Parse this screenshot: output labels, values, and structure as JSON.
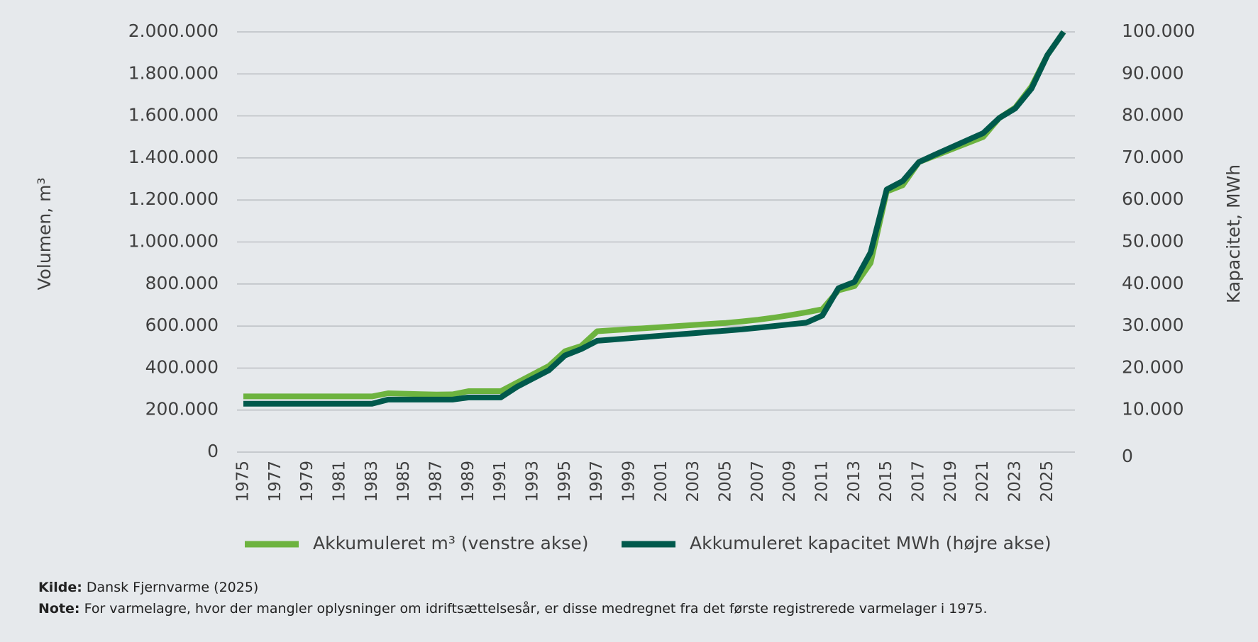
{
  "chart_data": {
    "type": "line",
    "y_label": "Volumen, m³",
    "y2_label": "Kapacitet, MWh",
    "categories": [
      "1975",
      null,
      "1977",
      null,
      "1979",
      null,
      "1981",
      null,
      "1983",
      null,
      "1985",
      null,
      "1987",
      null,
      "1989",
      null,
      "1991",
      null,
      "1993",
      null,
      "1995",
      null,
      "1997",
      null,
      "1999",
      null,
      "2001",
      null,
      "2003",
      null,
      "2005",
      null,
      "2007",
      null,
      "2009",
      null,
      "2011",
      null,
      "2013",
      null,
      "2015",
      null,
      "2017",
      null,
      "2019",
      null,
      "2021",
      null,
      "2023",
      null,
      "2025",
      null
    ],
    "series": [
      {
        "name": "Akkumuleret m³ (venstre akse)",
        "color": "#6db33f",
        "values": [
          265000,
          265000,
          265000,
          265000,
          265000,
          265000,
          265000,
          265000,
          265000,
          280000,
          278000,
          276000,
          274000,
          275000,
          290000,
          290000,
          290000,
          330000,
          370000,
          410000,
          480000,
          505000,
          575000,
          580000,
          585000,
          590000,
          595000,
          600000,
          605000,
          610000,
          615000,
          622000,
          630000,
          640000,
          652000,
          665000,
          680000,
          770000,
          790000,
          900000,
          1240000,
          1270000,
          1380000,
          1410000,
          1440000,
          1470000,
          1500000,
          1590000,
          1640000,
          1740000,
          1890000,
          2000000
        ]
      },
      {
        "name": "Akkumuleret kapacitet MWh (højre akse)",
        "color": "#00594c",
        "axis": "y2",
        "values": [
          11500,
          11500,
          11500,
          11500,
          11500,
          11500,
          11500,
          11500,
          11500,
          12500,
          12500,
          12500,
          12500,
          12500,
          13000,
          13000,
          13000,
          15500,
          17500,
          19500,
          23000,
          24500,
          26500,
          26800,
          27100,
          27400,
          27700,
          28000,
          28300,
          28600,
          28900,
          29200,
          29600,
          30000,
          30400,
          30800,
          32500,
          39000,
          40500,
          47500,
          62500,
          64500,
          69000,
          70800,
          72500,
          74200,
          75900,
          79500,
          81800,
          86500,
          94500,
          100000
        ]
      }
    ],
    "ylim": [
      0,
      2000000
    ],
    "yticks": [
      0,
      {
        "value": 200000,
        "label": "200.000"
      },
      {
        "value": 400000,
        "label": "400.000"
      },
      {
        "value": 600000,
        "label": "600.000"
      },
      {
        "value": 800000,
        "label": "800.000"
      },
      {
        "value": 1000000,
        "label": "1.000.000"
      },
      {
        "value": 1200000,
        "label": "1.200.000"
      },
      {
        "value": 1400000,
        "label": "1.400.000"
      },
      {
        "value": 1600000,
        "label": "1.600.000"
      },
      {
        "value": 1800000,
        "label": "1.800.000"
      },
      {
        "value": 2000000,
        "label": "2.000.000"
      }
    ],
    "y2lim": [
      0,
      100000
    ],
    "y2ticks": [
      0,
      {
        "value": 10000,
        "label": "10.000"
      },
      {
        "value": 20000,
        "label": "20.000"
      },
      {
        "value": 30000,
        "label": "30.000"
      },
      {
        "value": 40000,
        "label": "40.000"
      },
      {
        "value": 50000,
        "label": "50.000"
      },
      {
        "value": 60000,
        "label": "60.000"
      },
      {
        "value": 70000,
        "label": "70.000"
      },
      {
        "value": 80000,
        "label": "80.000"
      },
      {
        "value": 90000,
        "label": "90.000"
      },
      {
        "value": 100000,
        "label": "100.000"
      }
    ],
    "grid": true,
    "legend": "bottom",
    "source": {
      "label": "Kilde:",
      "text": "Dansk Fjernvarme (2025)"
    },
    "note": {
      "label": "Note:",
      "text": "For varmelagre, hvor der mangler oplysninger om idriftsættelsesår, er disse medregnet fra det første registrerede varmelager i 1975."
    }
  }
}
